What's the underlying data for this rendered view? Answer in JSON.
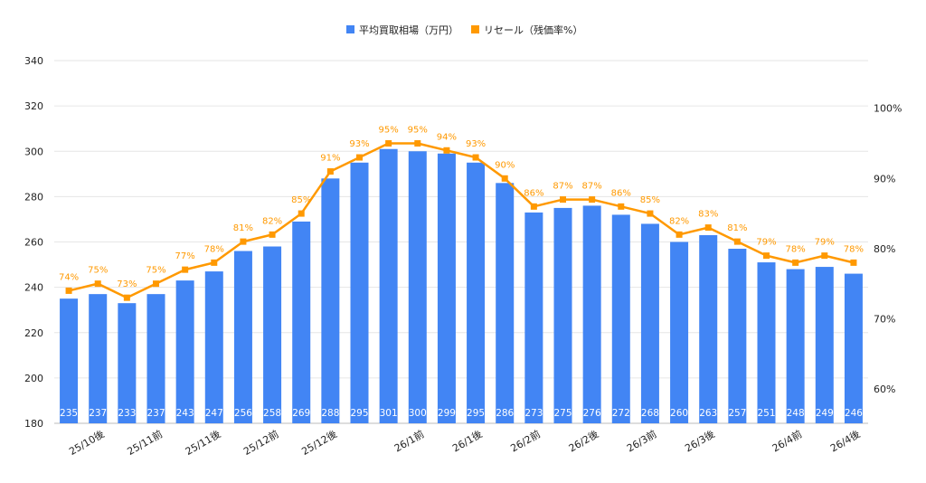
{
  "chart_data": {
    "type": "bar+line",
    "legend": {
      "position": "top",
      "items": [
        {
          "name": "平均買取相場（万円）",
          "color": "#4285f4"
        },
        {
          "name": "リセール（残価率%）",
          "color": "#ff9900"
        }
      ]
    },
    "categories": [
      "",
      "25/10後",
      "",
      "25/11前",
      "",
      "25/11後",
      "",
      "25/12前",
      "",
      "25/12後",
      "",
      "",
      "26/1前",
      "",
      "26/1後",
      "",
      "26/2前",
      "",
      "26/2後",
      "",
      "26/3前",
      "",
      "26/3後",
      "",
      "",
      "26/4前",
      "",
      "26/4後"
    ],
    "series": [
      {
        "name": "平均買取相場（万円）",
        "type": "bar",
        "axis": "left",
        "color": "#4285f4",
        "values": [
          235,
          237,
          233,
          237,
          243,
          247,
          256,
          258,
          269,
          288,
          295,
          301,
          300,
          299,
          295,
          286,
          273,
          275,
          276,
          272,
          268,
          260,
          263,
          257,
          251,
          248,
          249,
          246
        ]
      },
      {
        "name": "リセール（残価率%）",
        "type": "line",
        "axis": "right",
        "color": "#ff9900",
        "values": [
          74,
          75,
          73,
          75,
          77,
          78,
          81,
          82,
          85,
          91,
          93,
          95,
          95,
          94,
          93,
          90,
          86,
          87,
          87,
          86,
          85,
          82,
          83,
          81,
          79,
          78,
          79,
          78
        ]
      }
    ],
    "left_axis": {
      "ylim": [
        180,
        340
      ],
      "ticks": [
        "180",
        "200",
        "220",
        "240",
        "260",
        "280",
        "300",
        "320",
        "340"
      ]
    },
    "right_axis": {
      "ylim": [
        55.1,
        106.8
      ],
      "ticks": [
        "60%",
        "70%",
        "80%",
        "90%",
        "100%"
      ],
      "tick_values": [
        60,
        70,
        80,
        90,
        100
      ]
    },
    "grid": true
  }
}
